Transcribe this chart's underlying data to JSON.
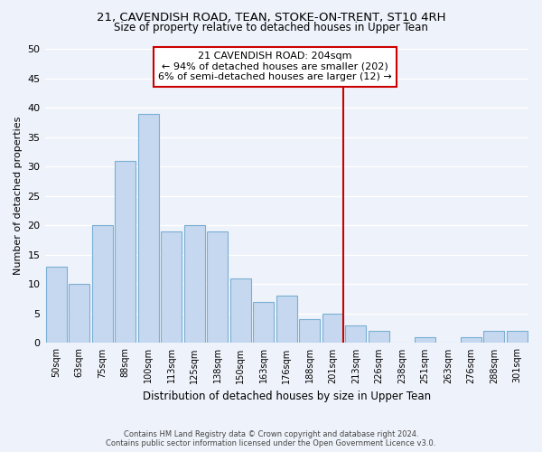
{
  "title": "21, CAVENDISH ROAD, TEAN, STOKE-ON-TRENT, ST10 4RH",
  "subtitle": "Size of property relative to detached houses in Upper Tean",
  "xlabel": "Distribution of detached houses by size in Upper Tean",
  "ylabel": "Number of detached properties",
  "bar_labels": [
    "50sqm",
    "63sqm",
    "75sqm",
    "88sqm",
    "100sqm",
    "113sqm",
    "125sqm",
    "138sqm",
    "150sqm",
    "163sqm",
    "176sqm",
    "188sqm",
    "201sqm",
    "213sqm",
    "226sqm",
    "238sqm",
    "251sqm",
    "263sqm",
    "276sqm",
    "288sqm",
    "301sqm"
  ],
  "bar_values": [
    13,
    10,
    20,
    31,
    39,
    19,
    20,
    19,
    11,
    7,
    8,
    4,
    5,
    3,
    2,
    0,
    1,
    0,
    1,
    2,
    2
  ],
  "bar_color": "#c5d8ef",
  "bar_edge_color": "#7aafd4",
  "background_color": "#eef2fa",
  "grid_color": "#ffffff",
  "vline_x_index": 12,
  "vline_color": "#cc0000",
  "annotation_title": "21 CAVENDISH ROAD: 204sqm",
  "annotation_line1": "← 94% of detached houses are smaller (202)",
  "annotation_line2": "6% of semi-detached houses are larger (12) →",
  "annotation_box_color": "#ffffff",
  "annotation_box_edge": "#cc0000",
  "footnote1": "Contains HM Land Registry data © Crown copyright and database right 2024.",
  "footnote2": "Contains public sector information licensed under the Open Government Licence v3.0.",
  "ylim": [
    0,
    50
  ],
  "yticks": [
    0,
    5,
    10,
    15,
    20,
    25,
    30,
    35,
    40,
    45,
    50
  ]
}
